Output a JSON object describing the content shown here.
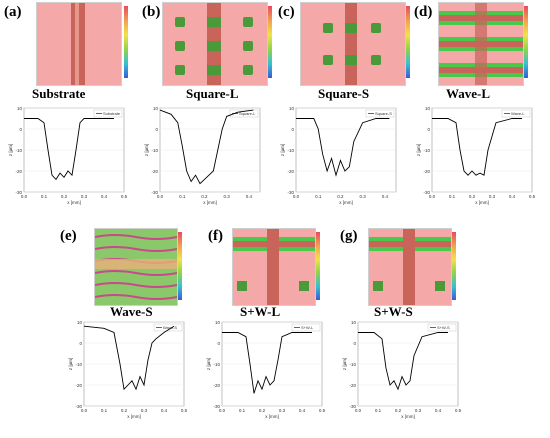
{
  "panels": [
    {
      "letter": "(a)",
      "title": "Substrate",
      "legend": "Substrate",
      "xlabel": "x [mm]",
      "ylabel": "z [µm]",
      "xticks": [
        "0.0",
        "0.1",
        "0.2",
        "0.3",
        "0.4",
        "0.5"
      ],
      "yticks": [
        "10",
        "0",
        "-10",
        "-20",
        "-30"
      ]
    },
    {
      "letter": "(b)",
      "title": "Square-L",
      "legend": "Square-L",
      "xlabel": "x [mm]",
      "ylabel": "z [µm]",
      "xticks": [
        "0.0",
        "0.1",
        "0.2",
        "0.3",
        "0.4"
      ],
      "yticks": [
        "10",
        "0",
        "-10",
        "-20",
        "-30"
      ]
    },
    {
      "letter": "(c)",
      "title": "Square-S",
      "legend": "Square-S",
      "xlabel": "x [mm]",
      "ylabel": "z [µm]",
      "xticks": [
        "0.0",
        "0.1",
        "0.2",
        "0.3",
        "0.4"
      ],
      "yticks": [
        "10",
        "0",
        "-10",
        "-20",
        "-30"
      ]
    },
    {
      "letter": "(d)",
      "title": "Wave-L",
      "legend": "Wave-L",
      "xlabel": "x [mm]",
      "ylabel": "z [µm]",
      "xticks": [
        "0.0",
        "0.1",
        "0.2",
        "0.3",
        "0.4",
        "0.5"
      ],
      "yticks": [
        "10",
        "0",
        "-10",
        "-20",
        "-30"
      ]
    },
    {
      "letter": "(e)",
      "title": "Wave-S",
      "legend": "Wave-S",
      "xlabel": "x [mm]",
      "ylabel": "z [µm]",
      "xticks": [
        "0.0",
        "0.1",
        "0.2",
        "0.3",
        "0.4",
        "0.5"
      ],
      "yticks": [
        "10",
        "0",
        "-10",
        "-20",
        "-30"
      ]
    },
    {
      "letter": "(f)",
      "title": "S+W-L",
      "legend": "S+W-L",
      "xlabel": "x [mm]",
      "ylabel": "z [µm]",
      "xticks": [
        "0.0",
        "0.1",
        "0.2",
        "0.3",
        "0.4",
        "0.5"
      ],
      "yticks": [
        "10",
        "0",
        "-10",
        "-20",
        "-30"
      ]
    },
    {
      "letter": "(g)",
      "title": "S+W-S",
      "legend": "S+W-S",
      "xlabel": "x [mm]",
      "ylabel": "z [µm]",
      "xticks": [
        "0.0",
        "0.1",
        "0.2",
        "0.3",
        "0.4",
        "0.5"
      ],
      "yticks": [
        "10",
        "0",
        "-10",
        "-20",
        "-30"
      ]
    }
  ],
  "colors": {
    "surface": "#f4a8a8",
    "groove": "#c8645a",
    "green": "#4ac84a",
    "line": "#000000"
  },
  "chart_data": [
    {
      "type": "line",
      "legend": "Substrate",
      "xlim": [
        0,
        0.5
      ],
      "ylim": [
        -30,
        10
      ],
      "x": [
        0,
        0.07,
        0.1,
        0.12,
        0.14,
        0.16,
        0.18,
        0.2,
        0.22,
        0.24,
        0.26,
        0.28,
        0.3,
        0.35,
        0.45
      ],
      "y": [
        5,
        5,
        3,
        -10,
        -22,
        -24,
        -21,
        -23,
        -20,
        -22,
        -10,
        3,
        5,
        5,
        5
      ]
    },
    {
      "type": "line",
      "legend": "Square-L",
      "xlim": [
        0,
        0.45
      ],
      "ylim": [
        -30,
        10
      ],
      "x": [
        0,
        0.05,
        0.08,
        0.1,
        0.12,
        0.14,
        0.16,
        0.18,
        0.2,
        0.22,
        0.24,
        0.26,
        0.28,
        0.3,
        0.35,
        0.42
      ],
      "y": [
        9,
        7,
        3,
        -8,
        -20,
        -25,
        -22,
        -26,
        -24,
        -22,
        -20,
        -10,
        0,
        6,
        8,
        9
      ]
    },
    {
      "type": "line",
      "legend": "Square-S",
      "xlim": [
        0,
        0.45
      ],
      "ylim": [
        -30,
        10
      ],
      "x": [
        0,
        0.08,
        0.1,
        0.12,
        0.14,
        0.16,
        0.18,
        0.2,
        0.22,
        0.24,
        0.26,
        0.3,
        0.36,
        0.42
      ],
      "y": [
        5,
        5,
        0,
        -12,
        -20,
        -14,
        -22,
        -15,
        -20,
        -18,
        -6,
        3,
        5,
        5
      ]
    },
    {
      "type": "line",
      "legend": "Wave-L",
      "xlim": [
        0,
        0.5
      ],
      "ylim": [
        -30,
        10
      ],
      "x": [
        0,
        0.08,
        0.12,
        0.14,
        0.16,
        0.18,
        0.2,
        0.22,
        0.24,
        0.26,
        0.28,
        0.32,
        0.4,
        0.45
      ],
      "y": [
        5,
        5,
        3,
        -10,
        -20,
        -22,
        -20,
        -22,
        -21,
        -22,
        -10,
        3,
        5,
        5
      ]
    },
    {
      "type": "line",
      "legend": "Wave-S",
      "xlim": [
        0,
        0.5
      ],
      "ylim": [
        -30,
        10
      ],
      "x": [
        0,
        0.1,
        0.15,
        0.18,
        0.2,
        0.22,
        0.24,
        0.26,
        0.28,
        0.3,
        0.32,
        0.34,
        0.36,
        0.4,
        0.45
      ],
      "y": [
        8,
        7,
        5,
        -10,
        -22,
        -20,
        -18,
        -22,
        -16,
        -20,
        -8,
        0,
        2,
        5,
        8
      ]
    },
    {
      "type": "line",
      "legend": "S+W-L",
      "xlim": [
        0,
        0.5
      ],
      "ylim": [
        -30,
        10
      ],
      "x": [
        0,
        0.08,
        0.12,
        0.14,
        0.16,
        0.18,
        0.2,
        0.22,
        0.24,
        0.26,
        0.28,
        0.3,
        0.35,
        0.45
      ],
      "y": [
        5,
        5,
        3,
        -10,
        -24,
        -18,
        -22,
        -16,
        -20,
        -18,
        -8,
        3,
        5,
        5
      ]
    },
    {
      "type": "line",
      "legend": "S+W-S",
      "xlim": [
        0,
        0.5
      ],
      "ylim": [
        -30,
        10
      ],
      "x": [
        0,
        0.08,
        0.12,
        0.14,
        0.16,
        0.18,
        0.2,
        0.22,
        0.24,
        0.26,
        0.28,
        0.32,
        0.4,
        0.45
      ],
      "y": [
        5,
        5,
        2,
        -12,
        -20,
        -18,
        -22,
        -16,
        -20,
        -18,
        -6,
        3,
        5,
        5
      ]
    }
  ]
}
